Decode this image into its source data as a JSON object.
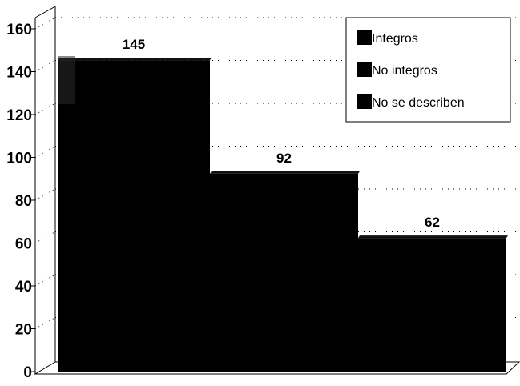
{
  "chart_data": {
    "type": "bar",
    "categories": [
      "Integros",
      "No integros",
      "No se describen"
    ],
    "values": [
      145,
      92,
      62
    ],
    "data_labels": [
      "145",
      "92",
      "62"
    ],
    "ylim": [
      0,
      160
    ],
    "y_ticks": [
      "0",
      "20",
      "40",
      "60",
      "80",
      "100",
      "120",
      "140",
      "160"
    ],
    "grid": "dotted horizontal",
    "legend": {
      "position": "top-right",
      "entries": [
        "Integros",
        "No integros",
        "No se describen"
      ]
    },
    "colors": {
      "bar": "#000000",
      "background": "#ffffff"
    },
    "style": "3d"
  }
}
